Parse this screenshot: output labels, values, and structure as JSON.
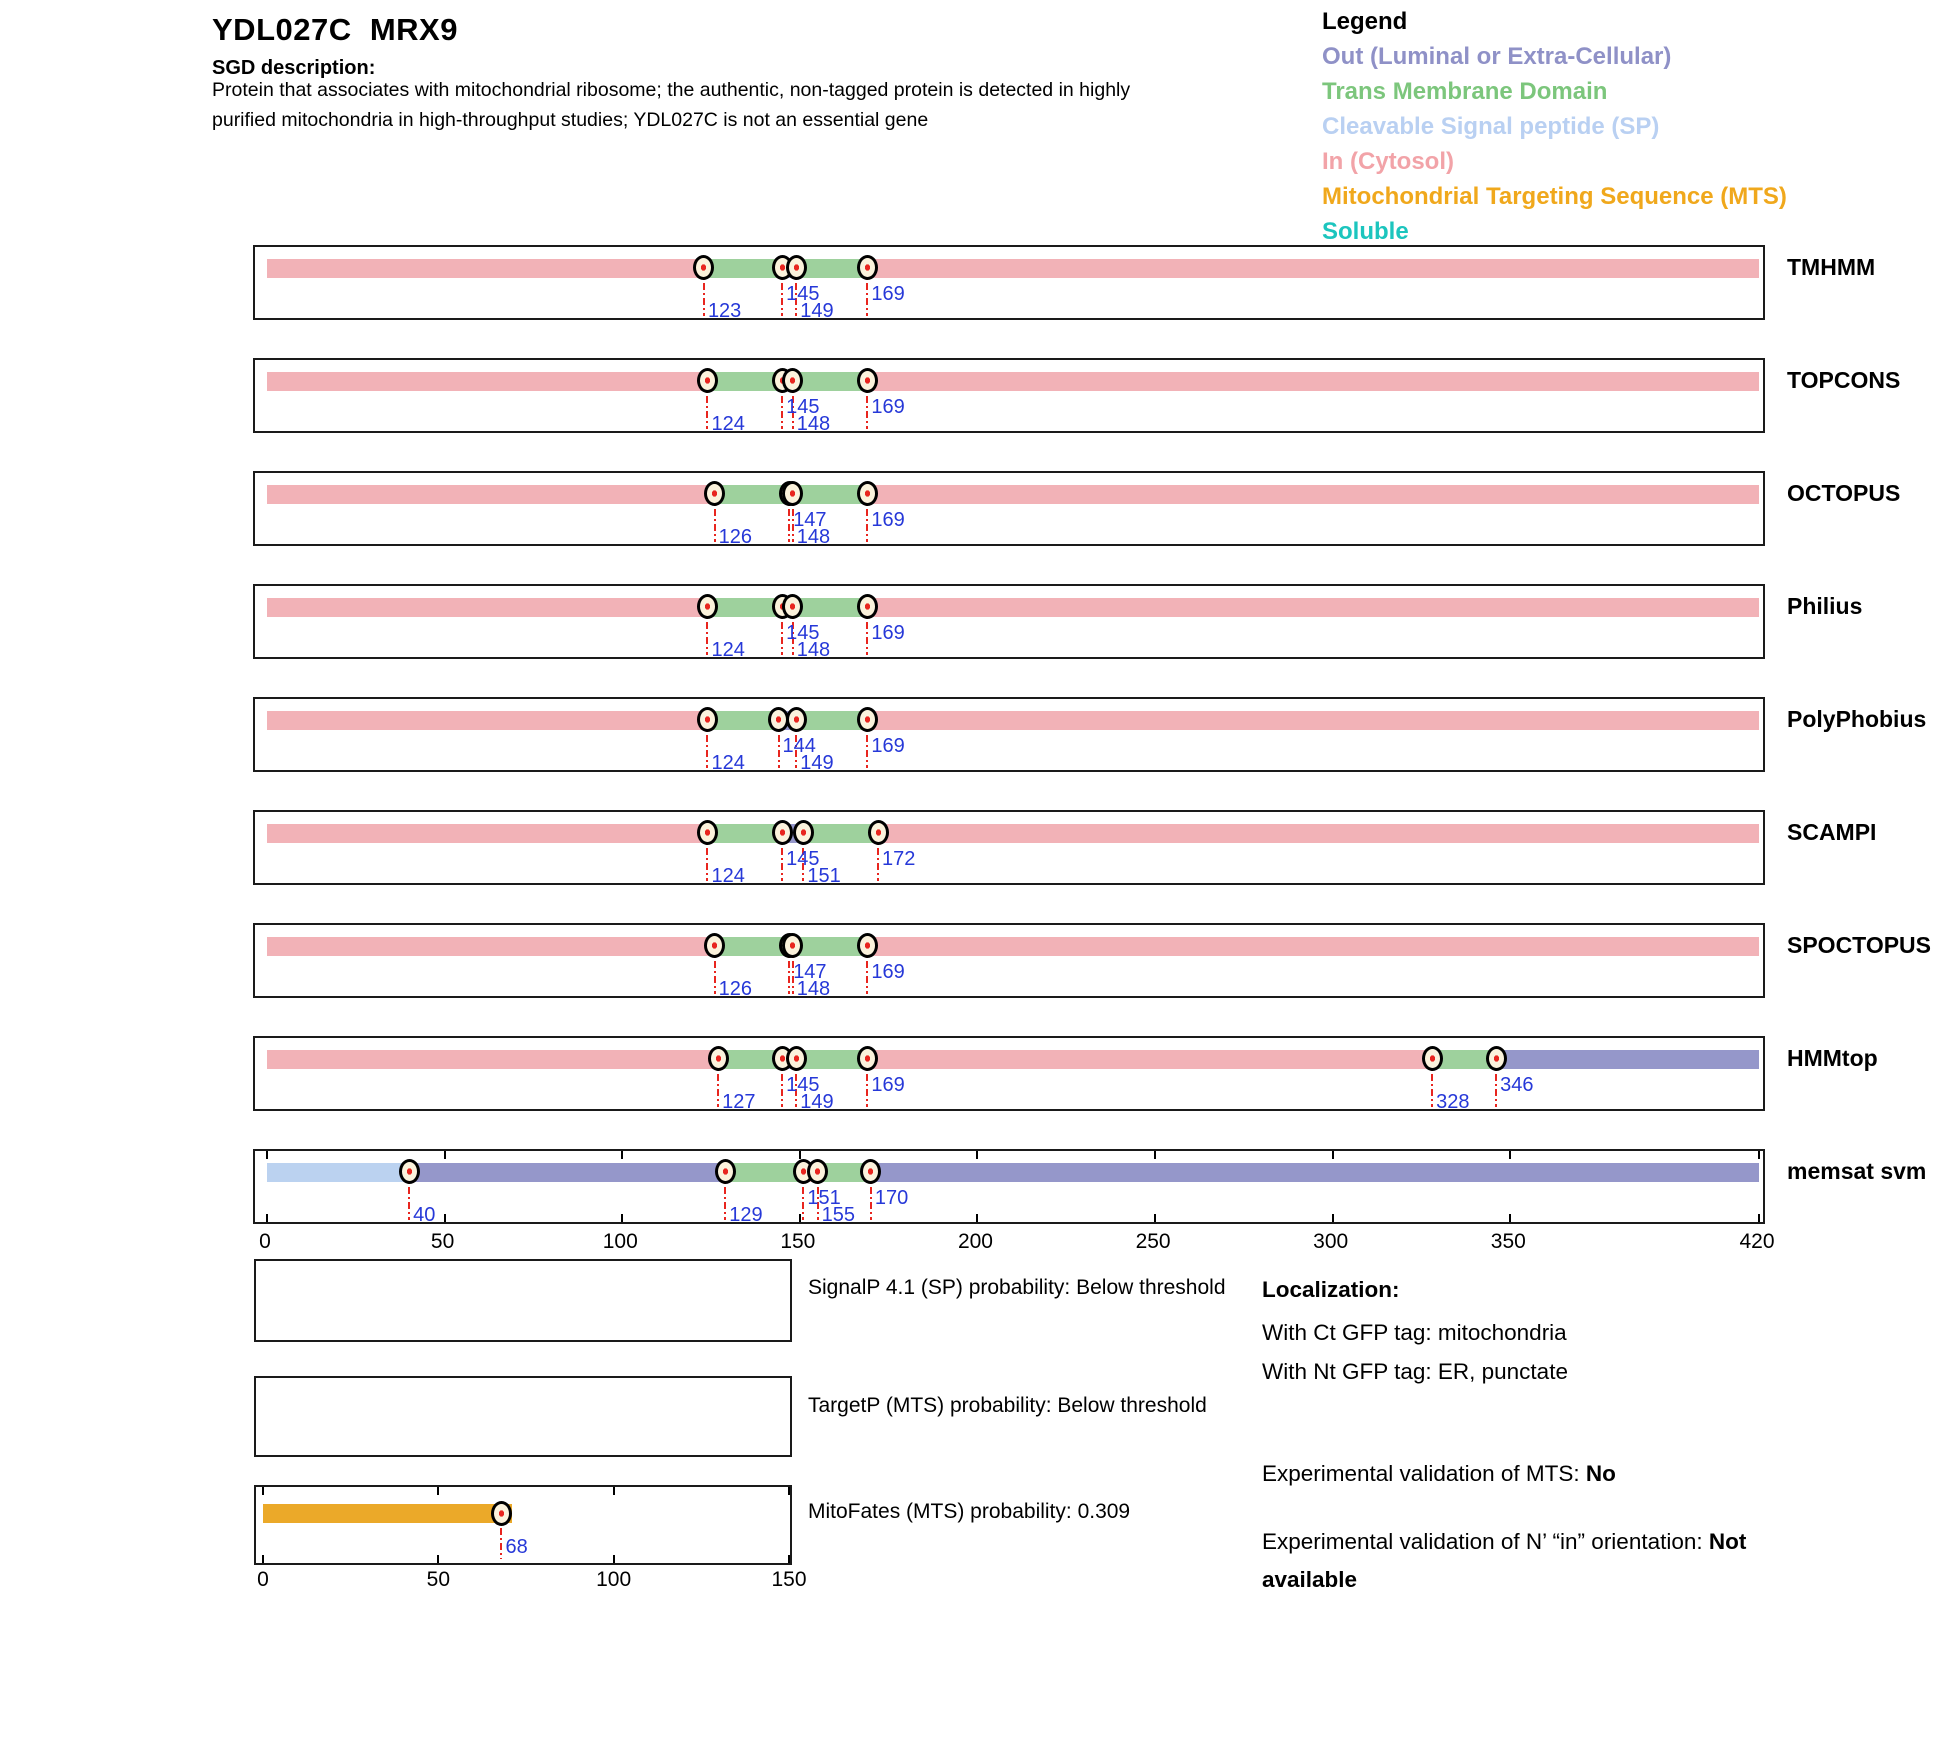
{
  "header": {
    "title": "YDL027C  MRX9",
    "sgd_label": "SGD description:",
    "sgd_lines": [
      "Protein that associates with mitochondrial ribosome; the authentic, non-tagged protein is detected in highly",
      "purified mitochondria in high-throughput studies; YDL027C is not an essential gene"
    ]
  },
  "legend": {
    "title": "Legend",
    "items": [
      {
        "label": "Out (Luminal or Extra-Cellular)",
        "color": "#8F91C7",
        "type": "out"
      },
      {
        "label": "Trans Membrane Domain",
        "color": "#7CC67C",
        "type": "tm"
      },
      {
        "label": "Cleavable Signal peptide (SP)",
        "color": "#B9D0F2",
        "type": "sp"
      },
      {
        "label": "In (Cytosol)",
        "color": "#F2A3A8",
        "type": "in"
      },
      {
        "label": "Mitochondrial Targeting Sequence (MTS)",
        "color": "#F0A81C",
        "type": "mts"
      },
      {
        "label": "Soluble",
        "color": "#1CC5BE",
        "type": "soluble"
      }
    ]
  },
  "palette": {
    "in": "#F2B2B7",
    "tm": "#9ED19D",
    "out": "#9597CA",
    "sp": "#BBD2F0",
    "mts": "#EBA929",
    "marker_fill": "#FBF2DC",
    "marker_dot": "#E8251F",
    "dash_red": "#E8251F",
    "label_blue": "#2638D8"
  },
  "chart_data": {
    "type": "topology-tracks",
    "axis": {
      "min": 0,
      "max": 420,
      "ticks": [
        0,
        50,
        100,
        150,
        200,
        250,
        300,
        350,
        420
      ]
    },
    "tracks": [
      {
        "name": "TMHMM",
        "box_ticks": false,
        "segments": [
          {
            "from": 0,
            "to": 123,
            "type": "in"
          },
          {
            "from": 123,
            "to": 145,
            "type": "tm"
          },
          {
            "from": 145,
            "to": 149,
            "type": "out"
          },
          {
            "from": 149,
            "to": 169,
            "type": "tm"
          },
          {
            "from": 169,
            "to": 420,
            "type": "in"
          }
        ],
        "markers": [
          {
            "pos": 123,
            "row": 2
          },
          {
            "pos": 145,
            "row": 1
          },
          {
            "pos": 149,
            "row": 2
          },
          {
            "pos": 169,
            "row": 1
          }
        ]
      },
      {
        "name": "TOPCONS",
        "box_ticks": false,
        "segments": [
          {
            "from": 0,
            "to": 124,
            "type": "in"
          },
          {
            "from": 124,
            "to": 145,
            "type": "tm"
          },
          {
            "from": 145,
            "to": 148,
            "type": "out"
          },
          {
            "from": 148,
            "to": 169,
            "type": "tm"
          },
          {
            "from": 169,
            "to": 420,
            "type": "in"
          }
        ],
        "markers": [
          {
            "pos": 124,
            "row": 2
          },
          {
            "pos": 145,
            "row": 1
          },
          {
            "pos": 148,
            "row": 2
          },
          {
            "pos": 169,
            "row": 1
          }
        ]
      },
      {
        "name": "OCTOPUS",
        "box_ticks": false,
        "segments": [
          {
            "from": 0,
            "to": 126,
            "type": "in"
          },
          {
            "from": 126,
            "to": 147,
            "type": "tm"
          },
          {
            "from": 147,
            "to": 148,
            "type": "out"
          },
          {
            "from": 148,
            "to": 169,
            "type": "tm"
          },
          {
            "from": 169,
            "to": 420,
            "type": "in"
          }
        ],
        "markers": [
          {
            "pos": 126,
            "row": 2
          },
          {
            "pos": 147,
            "row": 1
          },
          {
            "pos": 148,
            "row": 2
          },
          {
            "pos": 169,
            "row": 1
          }
        ]
      },
      {
        "name": "Philius",
        "box_ticks": false,
        "segments": [
          {
            "from": 0,
            "to": 124,
            "type": "in"
          },
          {
            "from": 124,
            "to": 145,
            "type": "tm"
          },
          {
            "from": 145,
            "to": 148,
            "type": "out"
          },
          {
            "from": 148,
            "to": 169,
            "type": "tm"
          },
          {
            "from": 169,
            "to": 420,
            "type": "in"
          }
        ],
        "markers": [
          {
            "pos": 124,
            "row": 2
          },
          {
            "pos": 145,
            "row": 1
          },
          {
            "pos": 148,
            "row": 2
          },
          {
            "pos": 169,
            "row": 1
          }
        ]
      },
      {
        "name": "PolyPhobius",
        "box_ticks": false,
        "segments": [
          {
            "from": 0,
            "to": 124,
            "type": "in"
          },
          {
            "from": 124,
            "to": 144,
            "type": "tm"
          },
          {
            "from": 144,
            "to": 149,
            "type": "out"
          },
          {
            "from": 149,
            "to": 169,
            "type": "tm"
          },
          {
            "from": 169,
            "to": 420,
            "type": "in"
          }
        ],
        "markers": [
          {
            "pos": 124,
            "row": 2
          },
          {
            "pos": 144,
            "row": 1
          },
          {
            "pos": 149,
            "row": 2
          },
          {
            "pos": 169,
            "row": 1
          }
        ]
      },
      {
        "name": "SCAMPI",
        "box_ticks": false,
        "segments": [
          {
            "from": 0,
            "to": 124,
            "type": "in"
          },
          {
            "from": 124,
            "to": 145,
            "type": "tm"
          },
          {
            "from": 145,
            "to": 151,
            "type": "out"
          },
          {
            "from": 151,
            "to": 172,
            "type": "tm"
          },
          {
            "from": 172,
            "to": 420,
            "type": "in"
          }
        ],
        "markers": [
          {
            "pos": 124,
            "row": 2
          },
          {
            "pos": 145,
            "row": 1
          },
          {
            "pos": 151,
            "row": 2
          },
          {
            "pos": 172,
            "row": 1
          }
        ]
      },
      {
        "name": "SPOCTOPUS",
        "box_ticks": false,
        "segments": [
          {
            "from": 0,
            "to": 126,
            "type": "in"
          },
          {
            "from": 126,
            "to": 147,
            "type": "tm"
          },
          {
            "from": 147,
            "to": 148,
            "type": "out"
          },
          {
            "from": 148,
            "to": 169,
            "type": "tm"
          },
          {
            "from": 169,
            "to": 420,
            "type": "in"
          }
        ],
        "markers": [
          {
            "pos": 126,
            "row": 2
          },
          {
            "pos": 147,
            "row": 1
          },
          {
            "pos": 148,
            "row": 2
          },
          {
            "pos": 169,
            "row": 1
          }
        ]
      },
      {
        "name": "HMMtop",
        "box_ticks": false,
        "segments": [
          {
            "from": 0,
            "to": 127,
            "type": "in"
          },
          {
            "from": 127,
            "to": 145,
            "type": "tm"
          },
          {
            "from": 145,
            "to": 149,
            "type": "out"
          },
          {
            "from": 149,
            "to": 169,
            "type": "tm"
          },
          {
            "from": 169,
            "to": 328,
            "type": "in"
          },
          {
            "from": 328,
            "to": 346,
            "type": "tm"
          },
          {
            "from": 346,
            "to": 420,
            "type": "out"
          }
        ],
        "markers": [
          {
            "pos": 127,
            "row": 2
          },
          {
            "pos": 145,
            "row": 1
          },
          {
            "pos": 149,
            "row": 2
          },
          {
            "pos": 169,
            "row": 1
          },
          {
            "pos": 328,
            "row": 2
          },
          {
            "pos": 346,
            "row": 1
          }
        ]
      },
      {
        "name": "memsat svm",
        "box_ticks": true,
        "segments": [
          {
            "from": 0,
            "to": 40,
            "type": "sp"
          },
          {
            "from": 40,
            "to": 129,
            "type": "out"
          },
          {
            "from": 129,
            "to": 151,
            "type": "tm"
          },
          {
            "from": 151,
            "to": 155,
            "type": "in"
          },
          {
            "from": 155,
            "to": 170,
            "type": "tm"
          },
          {
            "from": 170,
            "to": 420,
            "type": "out"
          }
        ],
        "markers": [
          {
            "pos": 40,
            "row": 2
          },
          {
            "pos": 129,
            "row": 2
          },
          {
            "pos": 151,
            "row": 1
          },
          {
            "pos": 155,
            "row": 2
          },
          {
            "pos": 170,
            "row": 1
          }
        ]
      }
    ],
    "probability_panels": [
      {
        "name": "SignalP",
        "label": "SignalP 4.1 (SP) probability: Below threshold",
        "bar": null
      },
      {
        "name": "TargetP",
        "label": "TargetP (MTS) probability: Below threshold",
        "bar": null
      },
      {
        "name": "MitoFates",
        "label": "MitoFates (MTS) probability: 0.309",
        "axis": {
          "min": 0,
          "max": 150,
          "ticks": [
            0,
            50,
            100,
            150
          ]
        },
        "bar": {
          "from": 0,
          "to": 71,
          "type": "mts"
        },
        "markers": [
          {
            "pos": 68,
            "row": 1,
            "label": "68"
          }
        ]
      }
    ]
  },
  "localization": {
    "title": "Localization:",
    "lines": [
      "With Ct GFP tag: mitochondria",
      "With Nt GFP tag: ER, punctate"
    ],
    "mts": {
      "label": "Experimental validation of MTS: ",
      "value": "No"
    },
    "orientation": {
      "label": "Experimental validation of N’ “in” orientation: ",
      "value": "Not available"
    }
  }
}
